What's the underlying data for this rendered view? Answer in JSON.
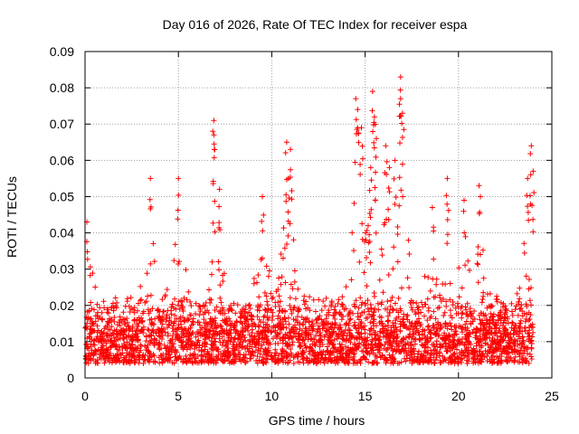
{
  "chart_data": {
    "type": "scatter",
    "title": "Day 016 of 2026, Rate Of TEC Index for receiver espa",
    "xlabel": "GPS time / hours",
    "ylabel": "ROTI / TECUs",
    "xlim": [
      0,
      25
    ],
    "ylim": [
      0,
      0.09
    ],
    "xticks": [
      0,
      5,
      10,
      15,
      20,
      25
    ],
    "xtick_labels": [
      "0",
      "5",
      "10",
      "15",
      "20",
      "25"
    ],
    "yticks": [
      0,
      0.01,
      0.02,
      0.03,
      0.04,
      0.05,
      0.06,
      0.07,
      0.08,
      0.09
    ],
    "ytick_labels": [
      "0",
      "0.01",
      "0.02",
      "0.03",
      "0.04",
      "0.05",
      "0.06",
      "0.07",
      "0.08",
      "0.09"
    ],
    "grid": true,
    "marker": "+",
    "series_color": "#ff0000",
    "data_range_hours": [
      0,
      24
    ],
    "baseline_band": [
      0.004,
      0.02
    ],
    "notable_peaks": [
      {
        "x": 0.1,
        "y": 0.043
      },
      {
        "x": 3.5,
        "y": 0.055
      },
      {
        "x": 5.0,
        "y": 0.055
      },
      {
        "x": 6.9,
        "y": 0.071
      },
      {
        "x": 6.9,
        "y": 0.067
      },
      {
        "x": 7.2,
        "y": 0.052
      },
      {
        "x": 9.5,
        "y": 0.05
      },
      {
        "x": 10.8,
        "y": 0.065
      },
      {
        "x": 11.0,
        "y": 0.063
      },
      {
        "x": 10.9,
        "y": 0.055
      },
      {
        "x": 14.5,
        "y": 0.077
      },
      {
        "x": 14.6,
        "y": 0.074
      },
      {
        "x": 14.8,
        "y": 0.069
      },
      {
        "x": 15.4,
        "y": 0.079
      },
      {
        "x": 15.5,
        "y": 0.072
      },
      {
        "x": 15.6,
        "y": 0.066
      },
      {
        "x": 15.3,
        "y": 0.058
      },
      {
        "x": 16.1,
        "y": 0.064
      },
      {
        "x": 16.3,
        "y": 0.058
      },
      {
        "x": 16.6,
        "y": 0.06
      },
      {
        "x": 16.9,
        "y": 0.083
      },
      {
        "x": 16.9,
        "y": 0.077
      },
      {
        "x": 17.0,
        "y": 0.073
      },
      {
        "x": 18.6,
        "y": 0.047
      },
      {
        "x": 19.4,
        "y": 0.055
      },
      {
        "x": 20.3,
        "y": 0.049
      },
      {
        "x": 21.1,
        "y": 0.053
      },
      {
        "x": 23.7,
        "y": 0.055
      },
      {
        "x": 23.9,
        "y": 0.064
      },
      {
        "x": 24.0,
        "y": 0.057
      }
    ]
  }
}
